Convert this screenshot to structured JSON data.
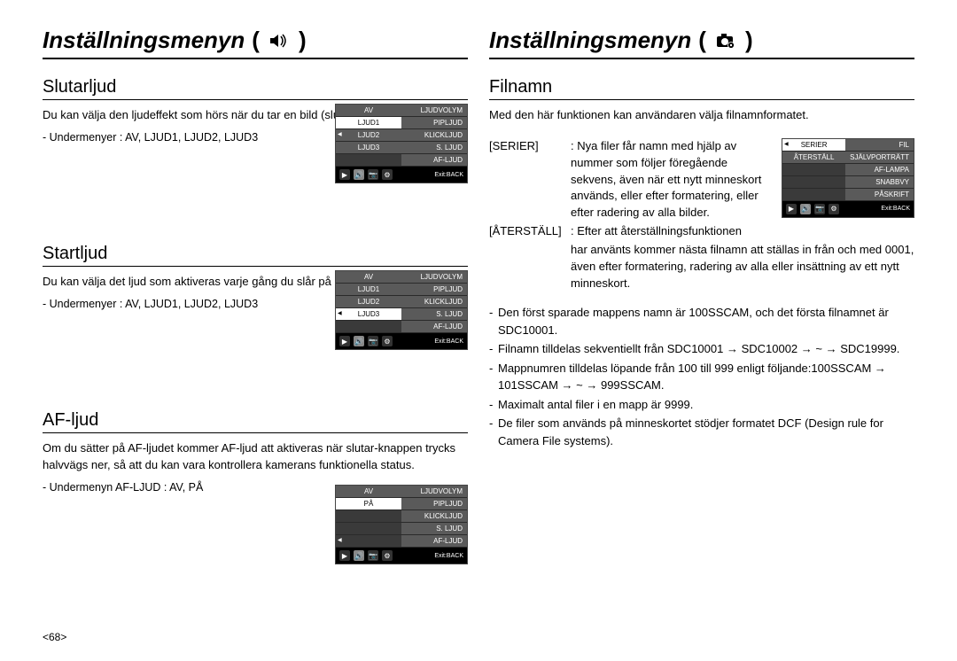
{
  "left": {
    "title": "Inställningsmenyn",
    "sec1": {
      "heading": "Slutarljud",
      "body": "Du kan välja den ljudeffekt som hörs när du tar en bild (slutarens ljud).",
      "sub": "- Undermenyer : AV, LJUD1, LJUD2, LJUD3",
      "menu": {
        "leftCol": [
          "AV",
          "LJUD1",
          "LJUD2",
          "LJUD3",
          ""
        ],
        "rightCol": [
          "LJUDVOLYM",
          "PIPLJUD",
          "KLICKLJUD",
          "S. LJUD",
          "AF-LJUD"
        ],
        "selectedLeft": 1,
        "arrowLeftAt": 2,
        "exit": "Exit:BACK"
      }
    },
    "sec2": {
      "heading": "Startljud",
      "body": "Du kan välja det ljud som aktiveras varje gång du slår på kameran.",
      "sub": "- Undermenyer : AV, LJUD1, LJUD2, LJUD3",
      "menu": {
        "leftCol": [
          "AV",
          "LJUD1",
          "LJUD2",
          "LJUD3",
          ""
        ],
        "rightCol": [
          "LJUDVOLYM",
          "PIPLJUD",
          "KLICKLJUD",
          "S. LJUD",
          "AF-LJUD"
        ],
        "selectedLeft": 3,
        "arrowLeftAt": 3,
        "exit": "Exit:BACK"
      }
    },
    "sec3": {
      "heading": "AF-ljud",
      "body": "Om du sätter på AF-ljudet kommer AF-ljud att aktiveras när slutar-knappen trycks halvvägs ner, så att du kan vara kontrollera kamerans funktionella status.",
      "sub": "- Undermenyn AF-LJUD : AV, PÅ",
      "menu": {
        "leftCol": [
          "AV",
          "PÅ",
          "",
          "",
          ""
        ],
        "rightCol": [
          "LJUDVOLYM",
          "PIPLJUD",
          "KLICKLJUD",
          "S. LJUD",
          "AF-LJUD"
        ],
        "selectedLeft": 1,
        "arrowLeftAt": 4,
        "exit": "Exit:BACK"
      }
    },
    "pageNum": "<68>"
  },
  "right": {
    "title": "Inställningsmenyn",
    "sec1": {
      "heading": "Filnamn",
      "body": "Med den här funktionen kan användaren välja filnamnformatet.",
      "def1term": "[SERIER]",
      "def1desc": ": Nya filer får namn med hjälp av nummer som följer föregående sekvens, även när ett nytt minneskort används, eller efter formatering, eller efter radering av alla bilder.",
      "def2term": "[ÅTERSTÄLL]",
      "def2desc": ": Efter att återställningsfunktionen",
      "def2cont": "har använts kommer nästa filnamn att ställas in från och med 0001, även efter formatering, radering av alla eller insättning av ett nytt minneskort.",
      "menu": {
        "leftCol": [
          "SERIER",
          "ÅTERSTÄLL",
          "",
          "",
          ""
        ],
        "rightCol": [
          "FIL",
          "SJÄLVPORTRÄTT",
          "AF-LAMPA",
          "SNABBVY",
          "PÅSKRIFT"
        ],
        "selectedLeft": 0,
        "arrowLeftAt": 0,
        "exit": "Exit:BACK"
      },
      "notes": [
        "Den först sparade mappens namn är 100SSCAM, och det första filnamnet är SDC10001.",
        "Filnamn tilldelas sekventiellt från SDC10001 → SDC10002 → ~ → SDC19999.",
        "Mappnumren tilldelas löpande från 100 till 999 enligt följande:100SSCAM → 101SSCAM → ~ → 999SSCAM.",
        "Maximalt antal filer i en mapp är 9999.",
        "De filer som används på minneskortet stödjer formatet DCF (Design rule for Camera File systems)."
      ]
    }
  }
}
